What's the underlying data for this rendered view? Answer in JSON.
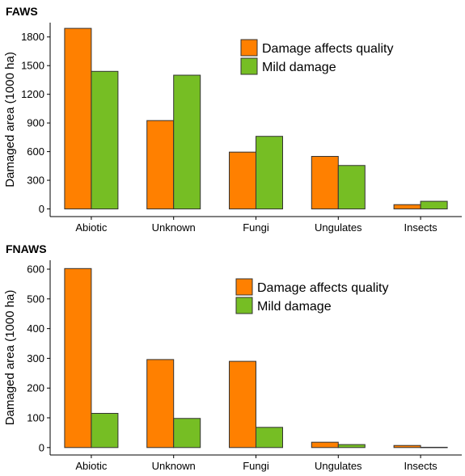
{
  "chart_data": [
    {
      "type": "bar",
      "title": "FAWS",
      "ylabel": "Damaged area (1000 ha)",
      "xlabel": "",
      "categories": [
        "Abiotic",
        "Unknown",
        "Fungi",
        "Ungulates",
        "Insects"
      ],
      "series": [
        {
          "name": "Damage affects quality",
          "color": "#FF8000",
          "values": [
            1890,
            925,
            595,
            550,
            45
          ]
        },
        {
          "name": "Mild damage",
          "color": "#76BE24",
          "values": [
            1440,
            1400,
            760,
            455,
            80
          ]
        }
      ],
      "yticks": [
        0,
        300,
        600,
        900,
        1200,
        1500,
        1800
      ],
      "ylim": [
        -80,
        1950
      ],
      "grid": false,
      "legend": "top-right"
    },
    {
      "type": "bar",
      "title": "FNAWS",
      "ylabel": "Damaged area (1000 ha)",
      "xlabel": "",
      "categories": [
        "Abiotic",
        "Unknown",
        "Fungi",
        "Ungulates",
        "Insects"
      ],
      "series": [
        {
          "name": "Damage affects quality",
          "color": "#FF8000",
          "values": [
            602,
            296,
            290,
            18,
            7
          ]
        },
        {
          "name": "Mild damage",
          "color": "#76BE24",
          "values": [
            115,
            98,
            68,
            10,
            1
          ]
        }
      ],
      "yticks": [
        0,
        100,
        200,
        300,
        400,
        500,
        600
      ],
      "ylim": [
        -25,
        630
      ],
      "grid": false,
      "legend": "top-right"
    }
  ]
}
